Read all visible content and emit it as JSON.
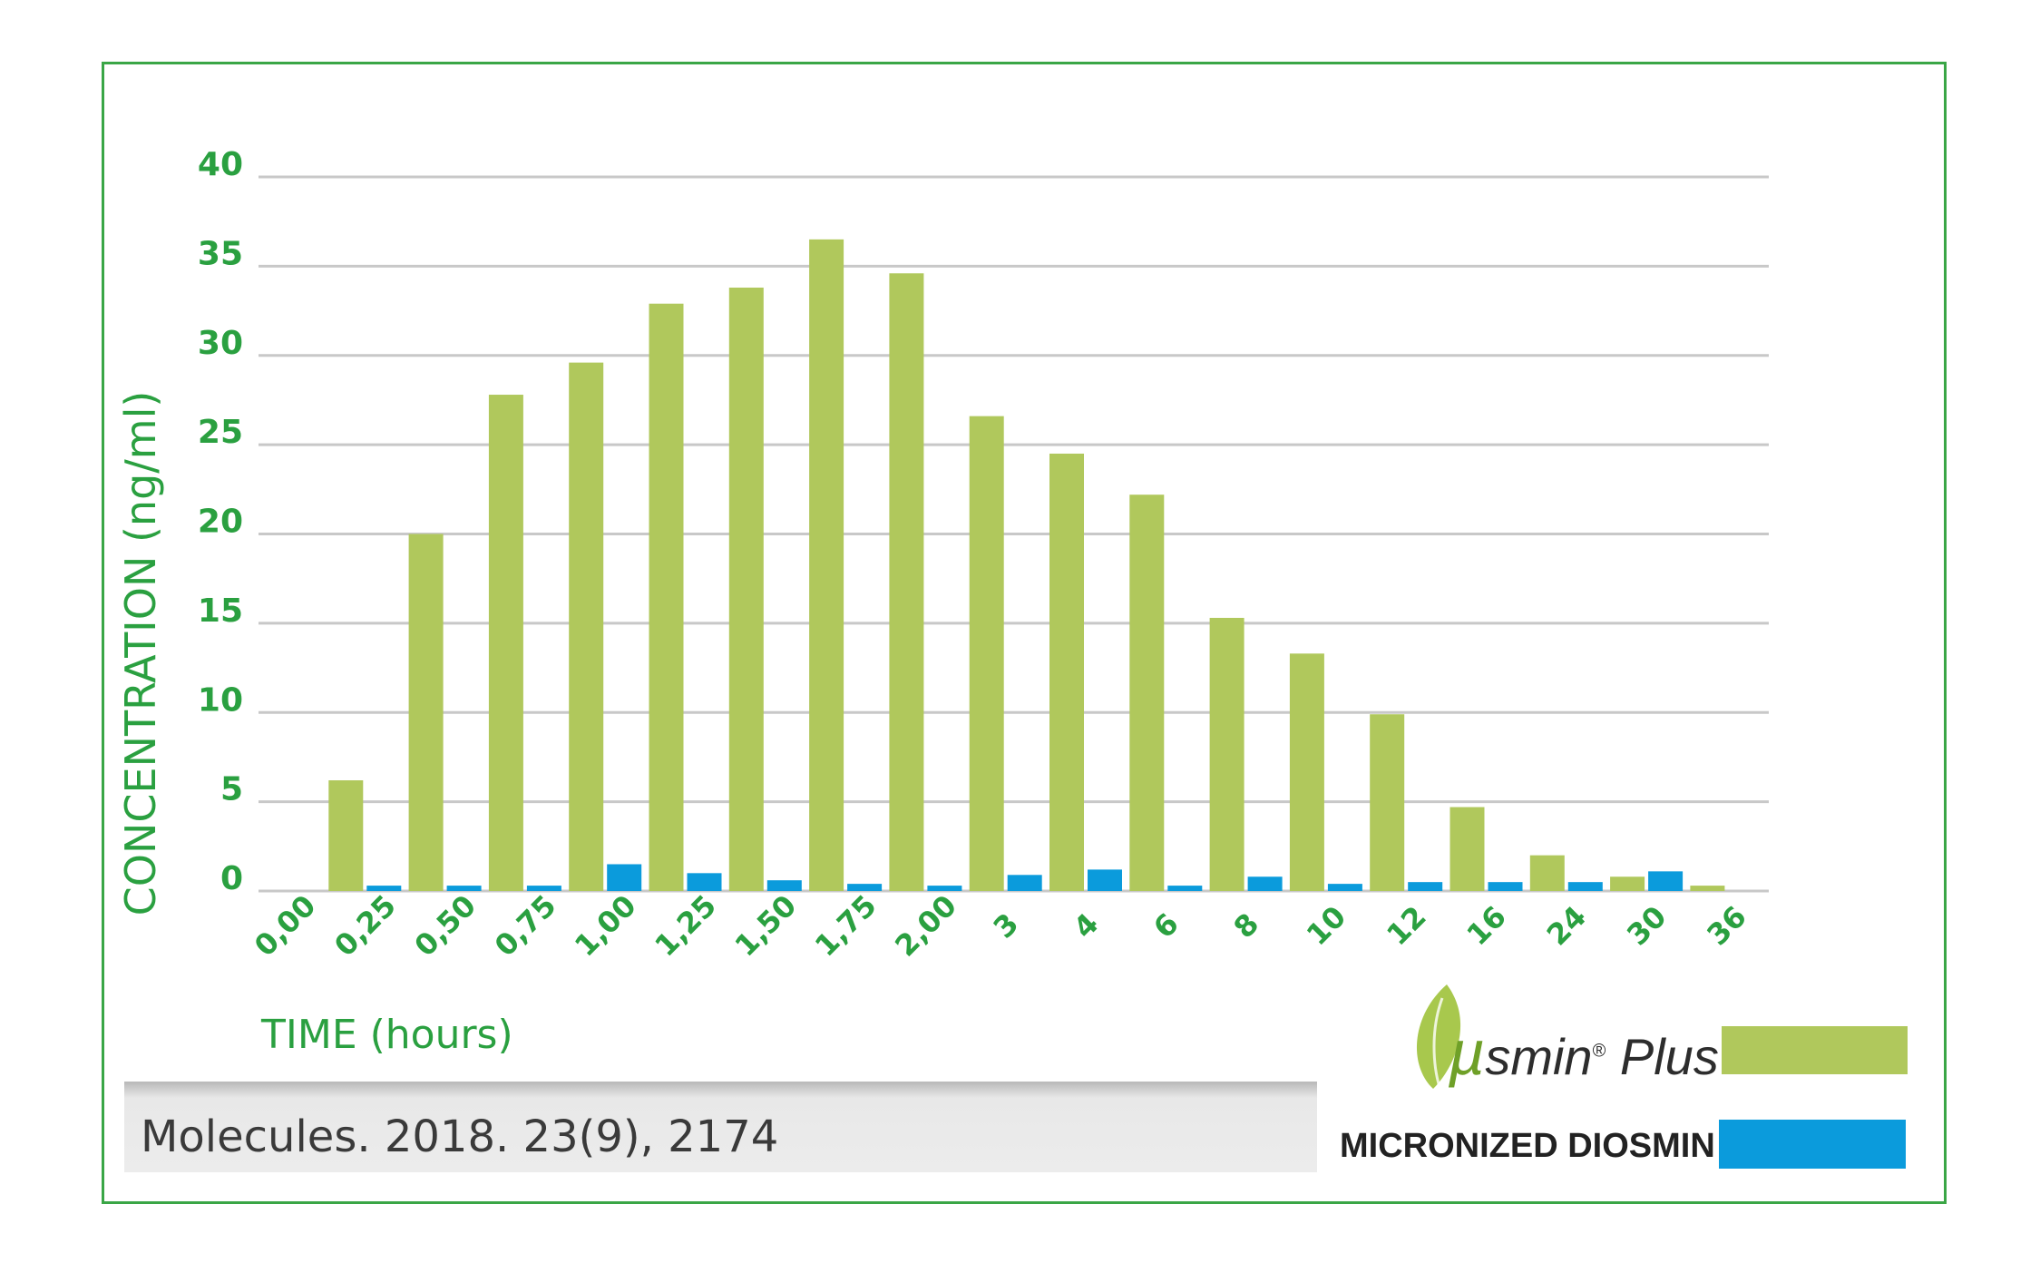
{
  "chart_data": {
    "type": "bar",
    "title": "",
    "xlabel": "TIME (hours)",
    "ylabel": "CONCENTRATION (ng/ml)",
    "ylim": [
      0,
      40
    ],
    "yticks": [
      "0",
      "5",
      "10",
      "15",
      "20",
      "25",
      "30",
      "35",
      "40"
    ],
    "categories": [
      "0,00",
      "0,25",
      "0,50",
      "0,75",
      "1,00",
      "1,25",
      "1,50",
      "1,75",
      "2,00",
      "3",
      "4",
      "6",
      "8",
      "10",
      "12",
      "16",
      "24",
      "30",
      "36"
    ],
    "series": [
      {
        "name": "µsmin Plus",
        "color": "#b0c85c",
        "values": [
          0,
          6.2,
          20,
          27.8,
          29.6,
          32.9,
          33.8,
          36.5,
          34.6,
          26.6,
          24.5,
          22.2,
          15.3,
          13.3,
          9.9,
          4.7,
          2.0,
          0.8,
          0.3
        ]
      },
      {
        "name": "MICRONIZED DIOSMIN",
        "color": "#0b9bdc",
        "values": [
          0,
          0.3,
          0.3,
          0.3,
          1.5,
          1.0,
          0.6,
          0.4,
          0.3,
          0.9,
          1.2,
          0.3,
          0.8,
          0.4,
          0.5,
          0.5,
          0.5,
          1.1,
          0
        ]
      }
    ],
    "grid": true,
    "legend_position": "bottom-right"
  },
  "legend": {
    "brand_mu": "µ",
    "brand_name": "smin",
    "brand_reg": "®",
    "brand_suffix": " Plus",
    "series2_label": "MICRONIZED DIOSMIN"
  },
  "citation": "Molecules. 2018. 23(9), 2174",
  "colors": {
    "axis_text": "#2aa040",
    "grid": "#c8c8c8",
    "frame": "#3aa646"
  }
}
